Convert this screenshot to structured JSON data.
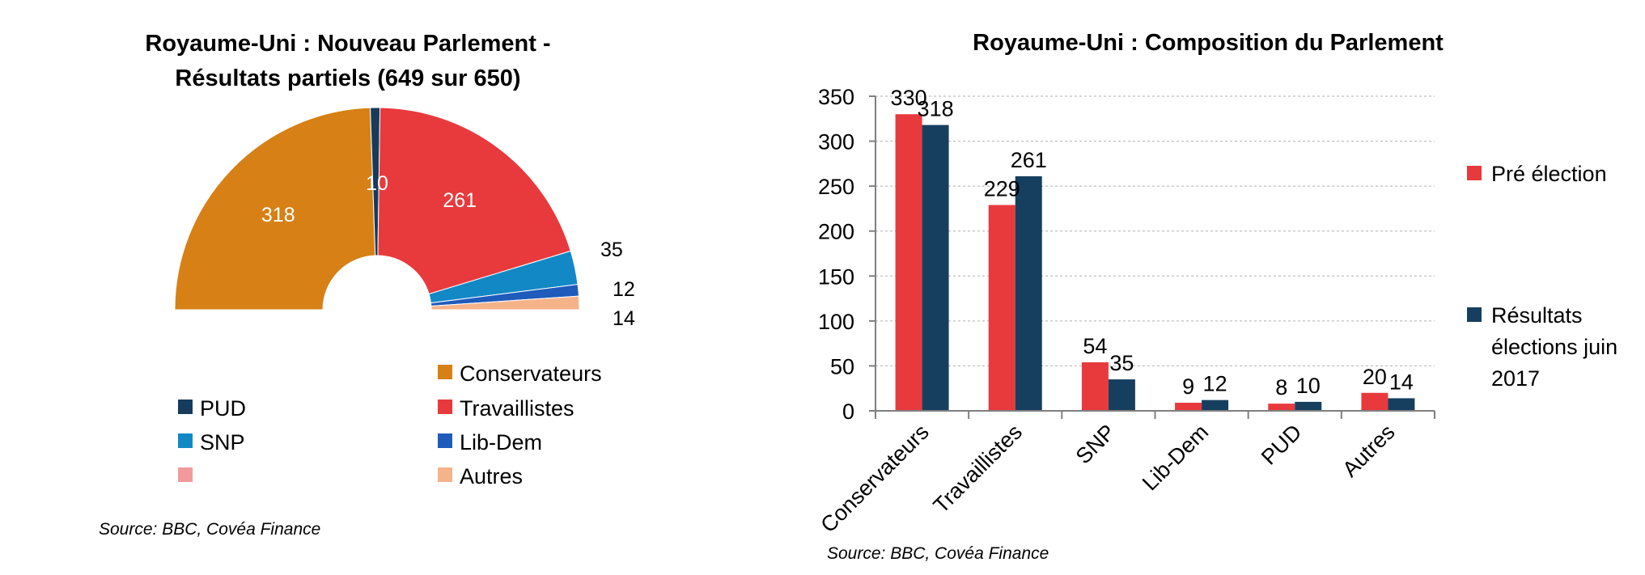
{
  "chart_data": [
    {
      "type": "pie",
      "variant": "half-donut",
      "title_lines": [
        "Royaume-Uni  : Nouveau Parlement -",
        "Résultats partiels (649 sur 650)"
      ],
      "slices": [
        {
          "name": "Conservateurs",
          "value": 318,
          "label": "318",
          "color": "#d68016"
        },
        {
          "name": "PUD",
          "value": 10,
          "label": "10",
          "color": "#163b5c"
        },
        {
          "name": "Travaillistes",
          "value": 261,
          "label": "261",
          "color": "#e83a3d"
        },
        {
          "name": "SNP",
          "value": 35,
          "label": "35",
          "color": "#1289c5"
        },
        {
          "name": "Lib-Dem",
          "value": 12,
          "label": "12",
          "color": "#1f5bbb"
        },
        {
          "name": "",
          "value": 0,
          "label": "",
          "color": "#f29a9b"
        },
        {
          "name": "Autres",
          "value": 14,
          "label": "14",
          "color": "#f5b38a"
        }
      ],
      "legend_placement": "bottom",
      "source": "Source: BBC, Covéa Finance"
    },
    {
      "type": "bar",
      "title": "Royaume-Uni : Composition du Parlement",
      "categories": [
        "Conservateurs",
        "Travaillistes",
        "SNP",
        "Lib-Dem",
        "PUD",
        "Autres"
      ],
      "series": [
        {
          "name": "Pré élection",
          "values": [
            330,
            229,
            54,
            9,
            8,
            20
          ],
          "color": "#e83a3d"
        },
        {
          "name": "Résultats élections juin 2017",
          "values": [
            318,
            261,
            35,
            12,
            10,
            14
          ],
          "color": "#163f5f"
        }
      ],
      "ylim": [
        0,
        350
      ],
      "yticks": [
        0,
        50,
        100,
        150,
        200,
        250,
        300,
        350
      ],
      "grid": true,
      "legend_placement": "right",
      "source": "Source: BBC, Covéa Finance"
    }
  ]
}
